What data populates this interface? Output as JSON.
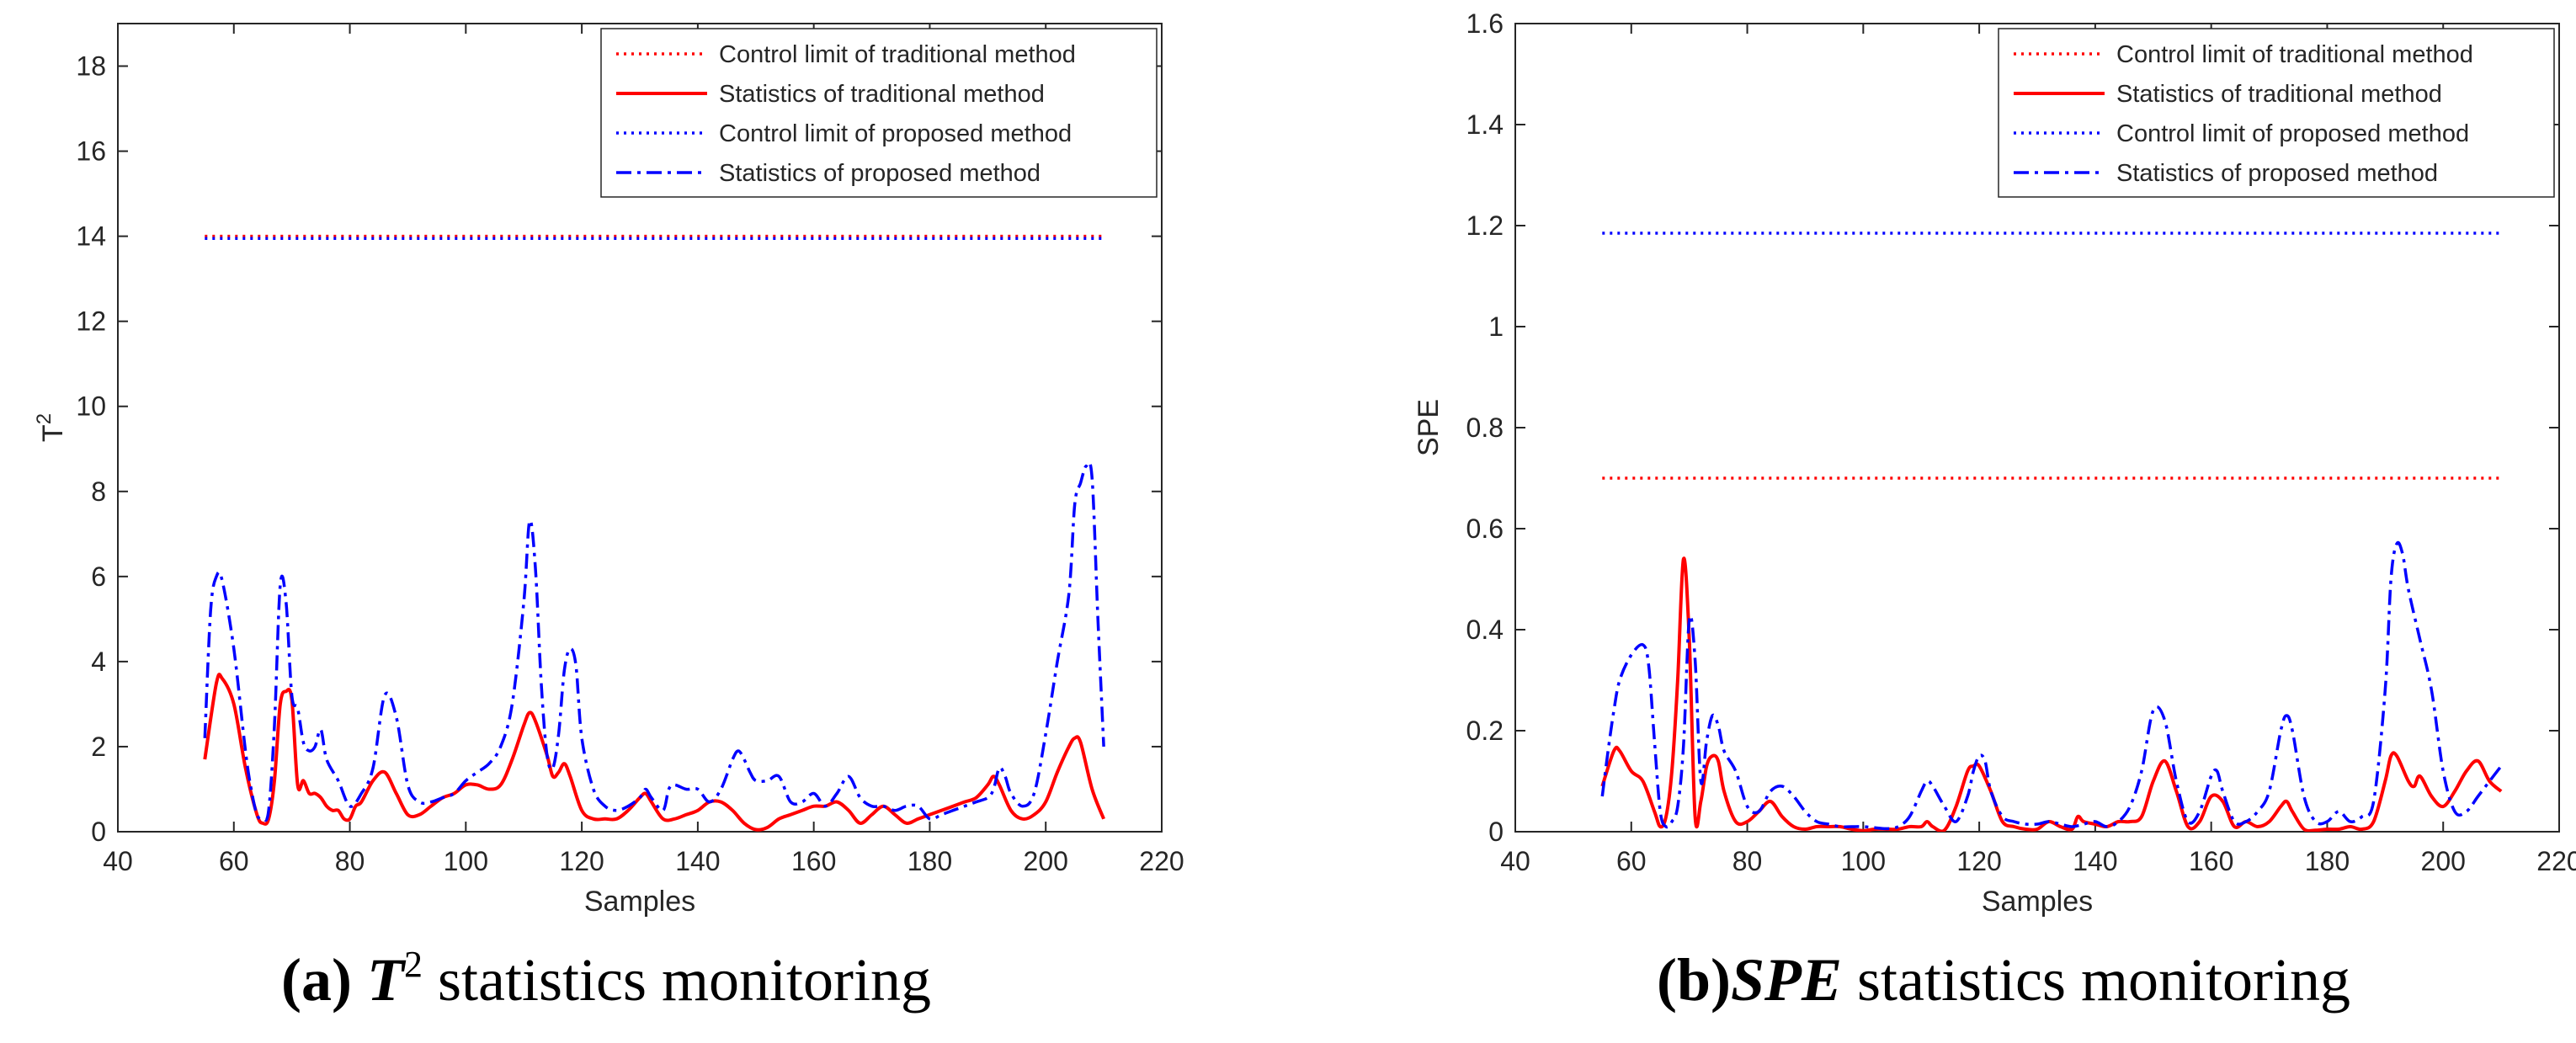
{
  "chart_data": [
    {
      "type": "line",
      "caption_prefix": "(a)",
      "caption_italic": "T",
      "caption_sup": "2",
      "caption_rest": " statistics monitoring",
      "xlabel": "Samples",
      "ylabel": "T",
      "ylabel_sup": "2",
      "xlim": [
        40,
        220
      ],
      "ylim": [
        0,
        19
      ],
      "xticks": [
        40,
        60,
        80,
        100,
        120,
        140,
        160,
        180,
        200,
        220
      ],
      "yticks": [
        0,
        2,
        4,
        6,
        8,
        10,
        12,
        14,
        16,
        18
      ],
      "legend_position": "top-right",
      "series": [
        {
          "name": "Control limit of traditional method",
          "color": "#ff0000",
          "style": "dotted",
          "x": [
            55,
            210
          ],
          "y": [
            14.0,
            14.0
          ]
        },
        {
          "name": "Statistics of traditional method",
          "color": "#ff0000",
          "style": "solid",
          "x": [
            55,
            57,
            58,
            60,
            62,
            64,
            65,
            66,
            67,
            68,
            69,
            70,
            71,
            72,
            73,
            74,
            75,
            76,
            77,
            78,
            79,
            80,
            81,
            82,
            84,
            86,
            88,
            90,
            92,
            94,
            96,
            98,
            100,
            102,
            104,
            106,
            108,
            110,
            111,
            112,
            114,
            115,
            116,
            117,
            118,
            120,
            122,
            124,
            126,
            128,
            130,
            131,
            132,
            134,
            136,
            138,
            140,
            142,
            144,
            146,
            148,
            150,
            152,
            154,
            156,
            158,
            160,
            162,
            164,
            166,
            168,
            170,
            172,
            174,
            176,
            178,
            180,
            182,
            184,
            186,
            188,
            190,
            191,
            192,
            194,
            196,
            198,
            200,
            202,
            204,
            205,
            206,
            208,
            210
          ],
          "y": [
            1.7,
            3.5,
            3.6,
            3.0,
            1.5,
            0.4,
            0.2,
            0.3,
            1.2,
            3.0,
            3.3,
            3.1,
            1.1,
            1.2,
            0.9,
            0.9,
            0.8,
            0.6,
            0.5,
            0.5,
            0.3,
            0.3,
            0.6,
            0.7,
            1.2,
            1.4,
            0.9,
            0.4,
            0.4,
            0.6,
            0.8,
            0.9,
            1.1,
            1.1,
            1.0,
            1.1,
            1.7,
            2.5,
            2.8,
            2.6,
            1.8,
            1.3,
            1.4,
            1.6,
            1.3,
            0.5,
            0.3,
            0.3,
            0.3,
            0.5,
            0.8,
            0.9,
            0.7,
            0.3,
            0.3,
            0.4,
            0.5,
            0.7,
            0.7,
            0.5,
            0.2,
            0.05,
            0.1,
            0.3,
            0.4,
            0.5,
            0.6,
            0.6,
            0.7,
            0.5,
            0.2,
            0.4,
            0.6,
            0.4,
            0.2,
            0.3,
            0.4,
            0.5,
            0.6,
            0.7,
            0.8,
            1.1,
            1.3,
            1.1,
            0.5,
            0.3,
            0.4,
            0.7,
            1.4,
            2.0,
            2.2,
            2.1,
            1.0,
            0.3
          ]
        },
        {
          "name": "Control limit of proposed method",
          "color": "#0000ff",
          "style": "dotted",
          "x": [
            55,
            210
          ],
          "y": [
            13.95,
            13.95
          ]
        },
        {
          "name": "Statistics of proposed method",
          "color": "#0000ff",
          "style": "dashdot",
          "x": [
            55,
            56,
            57,
            58,
            60,
            62,
            63,
            64,
            65,
            66,
            67,
            68,
            69,
            70,
            71,
            72,
            73,
            74,
            75,
            76,
            78,
            80,
            82,
            84,
            86,
            88,
            90,
            92,
            94,
            96,
            98,
            100,
            102,
            104,
            106,
            108,
            110,
            111,
            112,
            113,
            114,
            115,
            116,
            117,
            118,
            119,
            120,
            122,
            124,
            126,
            128,
            130,
            131,
            132,
            134,
            135,
            136,
            138,
            140,
            142,
            144,
            146,
            147,
            148,
            149,
            150,
            152,
            154,
            156,
            158,
            160,
            162,
            164,
            166,
            168,
            170,
            172,
            174,
            176,
            178,
            180,
            182,
            184,
            186,
            188,
            190,
            191,
            192,
            193,
            194,
            196,
            198,
            200,
            202,
            204,
            205,
            206,
            207,
            208,
            209,
            210
          ],
          "y": [
            2.2,
            5.2,
            6.0,
            5.9,
            4.3,
            1.9,
            1.0,
            0.4,
            0.3,
            0.5,
            2.5,
            5.8,
            5.4,
            3.2,
            2.9,
            2.1,
            1.9,
            2.0,
            2.4,
            1.7,
            1.2,
            0.6,
            0.9,
            1.5,
            3.2,
            2.7,
            1.1,
            0.7,
            0.7,
            0.8,
            0.9,
            1.2,
            1.4,
            1.6,
            2.0,
            3.0,
            5.4,
            7.3,
            6.2,
            3.5,
            1.8,
            1.5,
            2.3,
            3.8,
            4.3,
            3.9,
            2.2,
            1.0,
            0.6,
            0.5,
            0.6,
            0.8,
            1.0,
            0.8,
            0.5,
            1.0,
            1.1,
            1.0,
            1.0,
            0.7,
            1.0,
            1.7,
            1.9,
            1.7,
            1.4,
            1.2,
            1.2,
            1.3,
            0.7,
            0.7,
            0.9,
            0.6,
            0.9,
            1.3,
            0.8,
            0.6,
            0.6,
            0.5,
            0.6,
            0.6,
            0.3,
            0.4,
            0.5,
            0.6,
            0.7,
            0.8,
            1.0,
            1.5,
            1.3,
            0.9,
            0.6,
            0.9,
            2.3,
            4.0,
            5.6,
            7.7,
            8.2,
            8.6,
            8.3,
            5.0,
            2.0
          ]
        }
      ]
    },
    {
      "type": "line",
      "caption_prefix": "(b)",
      "caption_italic": "SPE",
      "caption_rest": " statistics monitoring",
      "xlabel": "Samples",
      "ylabel": "SPE",
      "xlim": [
        40,
        220
      ],
      "ylim": [
        0,
        1.6
      ],
      "xticks": [
        40,
        60,
        80,
        100,
        120,
        140,
        160,
        180,
        200,
        220
      ],
      "yticks": [
        0,
        0.2,
        0.4,
        0.6,
        0.8,
        1,
        1.2,
        1.4,
        1.6
      ],
      "ytick_labels": [
        "0",
        "0.2",
        "0.4",
        "0.6",
        "0.8",
        "1",
        "1.2",
        "1.4",
        "1.6"
      ],
      "legend_position": "top-right",
      "series": [
        {
          "name": "Control limit of traditional method",
          "color": "#ff0000",
          "style": "dotted",
          "x": [
            55,
            210
          ],
          "y": [
            0.7,
            0.7
          ]
        },
        {
          "name": "Statistics of traditional method",
          "color": "#ff0000",
          "style": "solid",
          "x": [
            55,
            57,
            58,
            60,
            62,
            64,
            65,
            66,
            67,
            68,
            69,
            70,
            71,
            72,
            73,
            74,
            75,
            76,
            78,
            80,
            82,
            84,
            86,
            88,
            90,
            92,
            94,
            96,
            98,
            100,
            102,
            104,
            106,
            108,
            110,
            111,
            112,
            114,
            116,
            118,
            119,
            120,
            122,
            124,
            126,
            128,
            130,
            132,
            134,
            136,
            137,
            138,
            140,
            142,
            144,
            146,
            148,
            150,
            152,
            154,
            156,
            158,
            160,
            162,
            164,
            166,
            168,
            170,
            172,
            173,
            174,
            176,
            178,
            180,
            182,
            184,
            186,
            188,
            190,
            191,
            192,
            194,
            195,
            196,
            198,
            200,
            202,
            204,
            206,
            208,
            210
          ],
          "y": [
            0.09,
            0.16,
            0.16,
            0.12,
            0.1,
            0.04,
            0.01,
            0.03,
            0.12,
            0.3,
            0.54,
            0.38,
            0.03,
            0.06,
            0.13,
            0.15,
            0.14,
            0.08,
            0.02,
            0.02,
            0.04,
            0.06,
            0.03,
            0.01,
            0.005,
            0.01,
            0.01,
            0.01,
            0.005,
            0.002,
            0.005,
            0.005,
            0.005,
            0.01,
            0.01,
            0.02,
            0.01,
            0.003,
            0.05,
            0.12,
            0.13,
            0.13,
            0.08,
            0.02,
            0.01,
            0.005,
            0.005,
            0.02,
            0.01,
            0.005,
            0.03,
            0.02,
            0.015,
            0.01,
            0.02,
            0.02,
            0.03,
            0.1,
            0.14,
            0.08,
            0.01,
            0.02,
            0.07,
            0.06,
            0.01,
            0.02,
            0.01,
            0.02,
            0.05,
            0.06,
            0.04,
            0.005,
            0.003,
            0.005,
            0.005,
            0.01,
            0.005,
            0.02,
            0.1,
            0.15,
            0.15,
            0.1,
            0.09,
            0.11,
            0.07,
            0.05,
            0.08,
            0.12,
            0.14,
            0.1,
            0.08
          ]
        },
        {
          "name": "Control limit of proposed method",
          "color": "#0000ff",
          "style": "dotted",
          "x": [
            55,
            210
          ],
          "y": [
            1.185,
            1.185
          ]
        },
        {
          "name": "Statistics of proposed method",
          "color": "#0000ff",
          "style": "dashdot",
          "x": [
            55,
            56,
            57,
            58,
            60,
            62,
            63,
            64,
            65,
            66,
            67,
            68,
            69,
            70,
            71,
            72,
            73,
            74,
            75,
            76,
            78,
            80,
            82,
            84,
            86,
            88,
            90,
            92,
            94,
            96,
            98,
            100,
            102,
            104,
            106,
            108,
            110,
            111,
            112,
            114,
            116,
            118,
            119,
            120,
            121,
            122,
            124,
            126,
            128,
            130,
            132,
            134,
            136,
            138,
            140,
            142,
            144,
            146,
            148,
            150,
            152,
            154,
            156,
            158,
            160,
            161,
            162,
            164,
            166,
            168,
            170,
            172,
            173,
            174,
            176,
            178,
            180,
            182,
            184,
            186,
            188,
            190,
            191,
            192,
            193,
            194,
            196,
            198,
            200,
            202,
            204,
            206,
            208,
            210
          ],
          "y": [
            0.07,
            0.16,
            0.24,
            0.3,
            0.35,
            0.37,
            0.33,
            0.18,
            0.04,
            0.01,
            0.02,
            0.05,
            0.17,
            0.42,
            0.34,
            0.1,
            0.18,
            0.23,
            0.21,
            0.16,
            0.12,
            0.05,
            0.04,
            0.08,
            0.09,
            0.07,
            0.04,
            0.02,
            0.015,
            0.01,
            0.01,
            0.01,
            0.008,
            0.006,
            0.01,
            0.03,
            0.08,
            0.1,
            0.09,
            0.05,
            0.02,
            0.07,
            0.12,
            0.15,
            0.14,
            0.08,
            0.03,
            0.02,
            0.015,
            0.015,
            0.02,
            0.015,
            0.01,
            0.015,
            0.02,
            0.01,
            0.02,
            0.05,
            0.12,
            0.24,
            0.22,
            0.1,
            0.02,
            0.04,
            0.11,
            0.12,
            0.08,
            0.02,
            0.02,
            0.04,
            0.08,
            0.2,
            0.23,
            0.2,
            0.07,
            0.02,
            0.02,
            0.04,
            0.02,
            0.03,
            0.06,
            0.28,
            0.5,
            0.57,
            0.55,
            0.48,
            0.38,
            0.28,
            0.12,
            0.04,
            0.04,
            0.07,
            0.1,
            0.13
          ]
        }
      ]
    }
  ]
}
